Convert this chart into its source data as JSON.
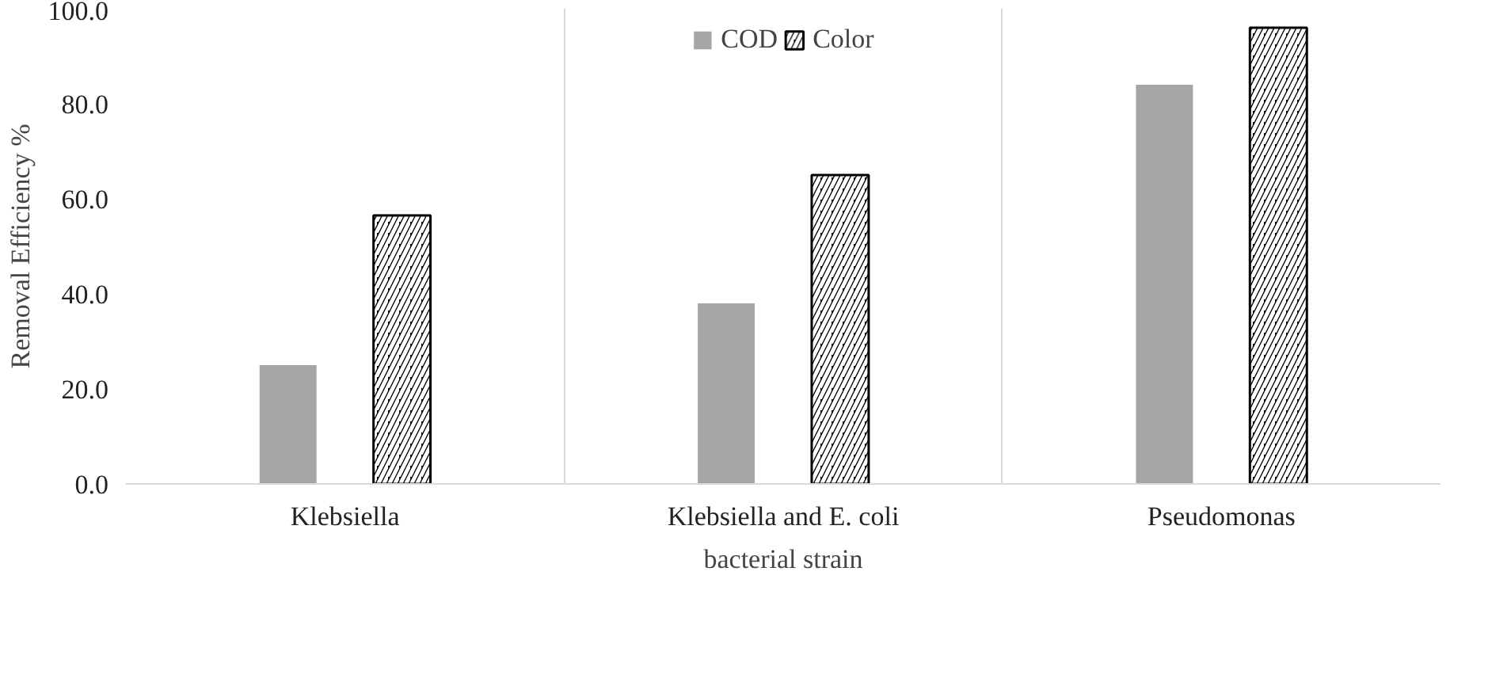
{
  "chart_data": {
    "type": "bar",
    "xlabel": "bacterial strain",
    "ylabel": "Removal Efficiency %",
    "categories": [
      "Klebsiella",
      "Klebsiella and E. coli",
      "Pseudomonas"
    ],
    "series": [
      {
        "name": "COD",
        "color": "#a6a6a6",
        "values": [
          25.0,
          38.0,
          84.0
        ]
      },
      {
        "name": "Color",
        "color": "#000000",
        "values": [
          56.5,
          65.0,
          96.0
        ]
      }
    ],
    "ylim": [
      0,
      100
    ],
    "yticks": [
      {
        "value": 0,
        "label": "0.0"
      },
      {
        "value": 20,
        "label": "20.0"
      },
      {
        "value": 40,
        "label": "40.0"
      },
      {
        "value": 60,
        "label": "60.0"
      },
      {
        "value": 80,
        "label": "80.0"
      },
      {
        "value": 100,
        "label": "100.0"
      }
    ],
    "grid": "x",
    "legend": "top"
  }
}
